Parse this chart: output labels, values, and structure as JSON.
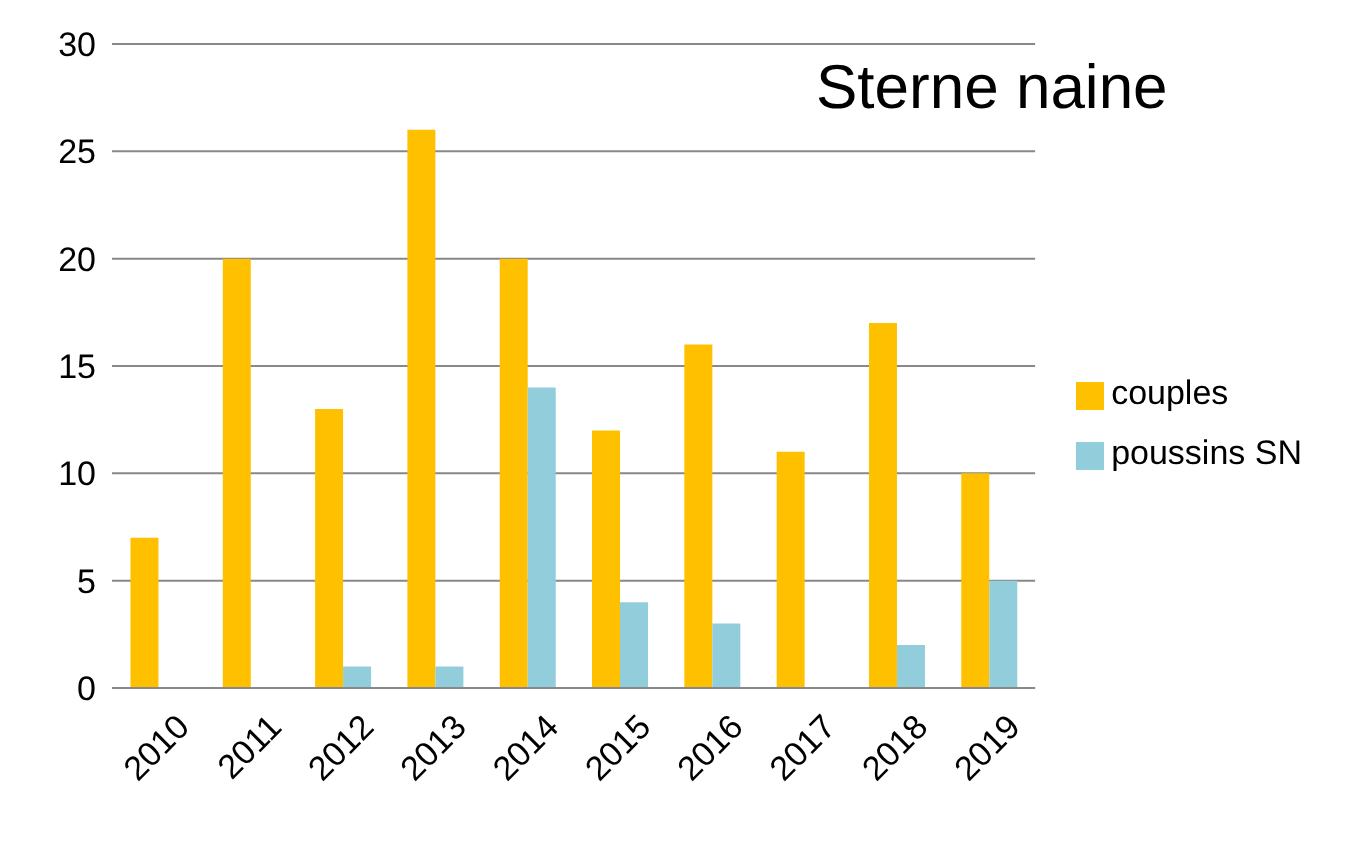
{
  "chart_data": {
    "type": "bar",
    "title": "Sterne naine",
    "categories": [
      "2010",
      "2011",
      "2012",
      "2013",
      "2014",
      "2015",
      "2016",
      "2017",
      "2018",
      "2019"
    ],
    "series": [
      {
        "name": "couples",
        "color": "#ffc000",
        "values": [
          7,
          20,
          13,
          26,
          20,
          12,
          16,
          11,
          17,
          10
        ]
      },
      {
        "name": "poussins SN",
        "color": "#92cddc",
        "values": [
          null,
          null,
          1,
          1,
          14,
          4,
          3,
          null,
          2,
          5
        ]
      }
    ],
    "ylim": [
      0,
      30
    ],
    "yticks": [
      0,
      5,
      10,
      15,
      20,
      25,
      30
    ],
    "grid": "y",
    "legend": "right"
  }
}
